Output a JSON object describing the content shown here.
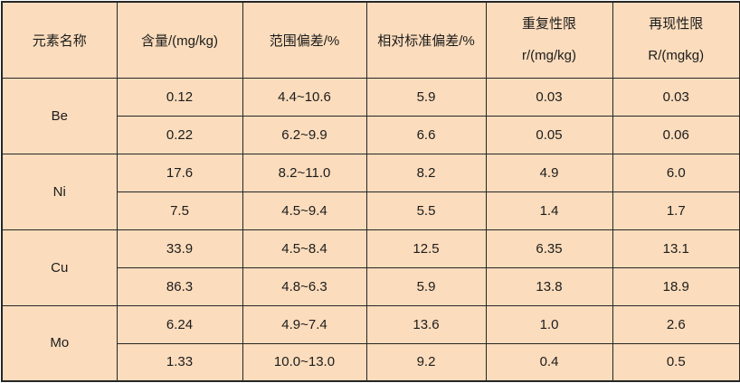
{
  "colors": {
    "cell_background": "#fbdcbc",
    "grid_border": "#262626",
    "text": "#1c1c1c",
    "page_background": "#ffffff"
  },
  "table": {
    "headers": [
      {
        "line1": "元素名称",
        "line2": ""
      },
      {
        "line1": "含量/(mg/kg)",
        "line2": ""
      },
      {
        "line1": "范围偏差/%",
        "line2": ""
      },
      {
        "line1": "相对标准偏差/%",
        "line2": ""
      },
      {
        "line1": "重复性限",
        "line2": "r/(mg/kg)"
      },
      {
        "line1": "再现性限",
        "line2": "R/(mgkg)"
      }
    ],
    "groups": [
      {
        "element": "Be",
        "rows": [
          [
            "0.12",
            "4.4~10.6",
            "5.9",
            "0.03",
            "0.03"
          ],
          [
            "0.22",
            "6.2~9.9",
            "6.6",
            "0.05",
            "0.06"
          ]
        ]
      },
      {
        "element": "Ni",
        "rows": [
          [
            "17.6",
            "8.2~11.0",
            "8.2",
            "4.9",
            "6.0"
          ],
          [
            "7.5",
            "4.5~9.4",
            "5.5",
            "1.4",
            "1.7"
          ]
        ]
      },
      {
        "element": "Cu",
        "rows": [
          [
            "33.9",
            "4.5~8.4",
            "12.5",
            "6.35",
            "13.1"
          ],
          [
            "86.3",
            "4.8~6.3",
            "5.9",
            "13.8",
            "18.9"
          ]
        ]
      },
      {
        "element": "Mo",
        "rows": [
          [
            "6.24",
            "4.9~7.4",
            "13.6",
            "1.0",
            "2.6"
          ],
          [
            "1.33",
            "10.0~13.0",
            "9.2",
            "0.4",
            "0.5"
          ]
        ]
      }
    ]
  },
  "chart_data": {
    "type": "table",
    "title": "",
    "columns": [
      "元素名称",
      "含量/(mg/kg)",
      "范围偏差/%",
      "相对标准偏差/%",
      "重复性限 r/(mg/kg)",
      "再现性限 R/(mgkg)"
    ],
    "rows": [
      [
        "Be",
        "0.12",
        "4.4~10.6",
        "5.9",
        "0.03",
        "0.03"
      ],
      [
        "Be",
        "0.22",
        "6.2~9.9",
        "6.6",
        "0.05",
        "0.06"
      ],
      [
        "Ni",
        "17.6",
        "8.2~11.0",
        "8.2",
        "4.9",
        "6.0"
      ],
      [
        "Ni",
        "7.5",
        "4.5~9.4",
        "5.5",
        "1.4",
        "1.7"
      ],
      [
        "Cu",
        "33.9",
        "4.5~8.4",
        "12.5",
        "6.35",
        "13.1"
      ],
      [
        "Cu",
        "86.3",
        "4.8~6.3",
        "5.9",
        "13.8",
        "18.9"
      ],
      [
        "Mo",
        "6.24",
        "4.9~7.4",
        "13.6",
        "1.0",
        "2.6"
      ],
      [
        "Mo",
        "1.33",
        "10.0~13.0",
        "9.2",
        "0.4",
        "0.5"
      ]
    ],
    "layout_hints": {
      "first_column_merged_rowspan": 2,
      "header_rows": 1,
      "grid": "all-borders",
      "cell_fill": "#fbdcbc"
    }
  }
}
